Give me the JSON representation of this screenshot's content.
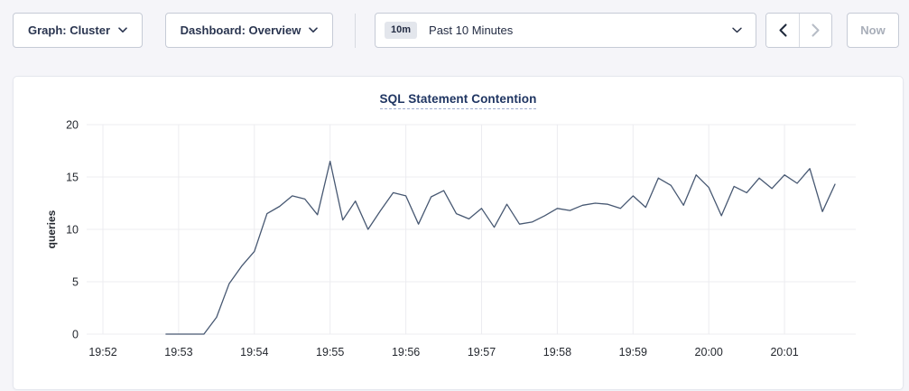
{
  "toolbar": {
    "graph_dropdown_label": "Graph: Cluster",
    "dashboard_dropdown_label": "Dashboard: Overview",
    "time_range": {
      "badge": "10m",
      "label": "Past 10 Minutes"
    },
    "now_label": "Now",
    "icons": {
      "graph_dropdown": "chevron-down-icon",
      "dashboard_dropdown": "chevron-down-icon",
      "time_range": "chevron-down-icon",
      "previous_range": "chevron-left-icon",
      "next_range": "chevron-right-icon"
    },
    "states": {
      "previous_enabled": true,
      "next_enabled": false,
      "now_enabled": false
    }
  },
  "colors": {
    "line": "#475872",
    "grid": "#ececf0",
    "title": "#1f3562",
    "text_dark": "#2a3550",
    "disabled": "#b7bdc7",
    "enabled_arrow": "#1f2a3c"
  },
  "chart_data": {
    "type": "line",
    "title": "SQL Statement Contention",
    "xlabel": "",
    "ylabel": "queries",
    "ylim": [
      0,
      20
    ],
    "yticks": [
      0,
      5,
      10,
      15,
      20
    ],
    "xticklabels": [
      "19:52",
      "19:53",
      "19:54",
      "19:55",
      "19:56",
      "19:57",
      "19:58",
      "19:59",
      "20:00",
      "20:01"
    ],
    "grid": true,
    "legend_position": "none",
    "series": [
      {
        "name": "queries",
        "color": "#475872",
        "points": [
          [
            "19:52:50",
            0
          ],
          [
            "19:53:00",
            0
          ],
          [
            "19:53:10",
            0
          ],
          [
            "19:53:20",
            0
          ],
          [
            "19:53:30",
            1.6
          ],
          [
            "19:53:40",
            4.8
          ],
          [
            "19:53:50",
            6.5
          ],
          [
            "19:54:00",
            7.9
          ],
          [
            "19:54:10",
            11.5
          ],
          [
            "19:54:20",
            12.2
          ],
          [
            "19:54:30",
            13.2
          ],
          [
            "19:54:40",
            12.9
          ],
          [
            "19:54:50",
            11.4
          ],
          [
            "19:55:00",
            16.5
          ],
          [
            "19:55:10",
            10.9
          ],
          [
            "19:55:20",
            12.7
          ],
          [
            "19:55:30",
            10.0
          ],
          [
            "19:55:40",
            11.8
          ],
          [
            "19:55:50",
            13.5
          ],
          [
            "19:56:00",
            13.2
          ],
          [
            "19:56:10",
            10.5
          ],
          [
            "19:56:20",
            13.1
          ],
          [
            "19:56:30",
            13.7
          ],
          [
            "19:56:40",
            11.5
          ],
          [
            "19:56:50",
            11.0
          ],
          [
            "19:57:00",
            12.0
          ],
          [
            "19:57:10",
            10.2
          ],
          [
            "19:57:20",
            12.4
          ],
          [
            "19:57:30",
            10.5
          ],
          [
            "19:57:40",
            10.7
          ],
          [
            "19:57:50",
            11.3
          ],
          [
            "19:58:00",
            12.0
          ],
          [
            "19:58:10",
            11.8
          ],
          [
            "19:58:20",
            12.3
          ],
          [
            "19:58:30",
            12.5
          ],
          [
            "19:58:40",
            12.4
          ],
          [
            "19:58:50",
            12.0
          ],
          [
            "19:59:00",
            13.2
          ],
          [
            "19:59:10",
            12.1
          ],
          [
            "19:59:20",
            14.9
          ],
          [
            "19:59:30",
            14.2
          ],
          [
            "19:59:40",
            12.3
          ],
          [
            "19:59:50",
            15.2
          ],
          [
            "20:00:00",
            14.0
          ],
          [
            "20:00:10",
            11.3
          ],
          [
            "20:00:20",
            14.1
          ],
          [
            "20:00:30",
            13.5
          ],
          [
            "20:00:40",
            14.9
          ],
          [
            "20:00:50",
            13.9
          ],
          [
            "20:01:00",
            15.2
          ],
          [
            "20:01:10",
            14.4
          ],
          [
            "20:01:20",
            15.8
          ],
          [
            "20:01:30",
            11.7
          ],
          [
            "20:01:40",
            14.3
          ]
        ]
      }
    ]
  }
}
